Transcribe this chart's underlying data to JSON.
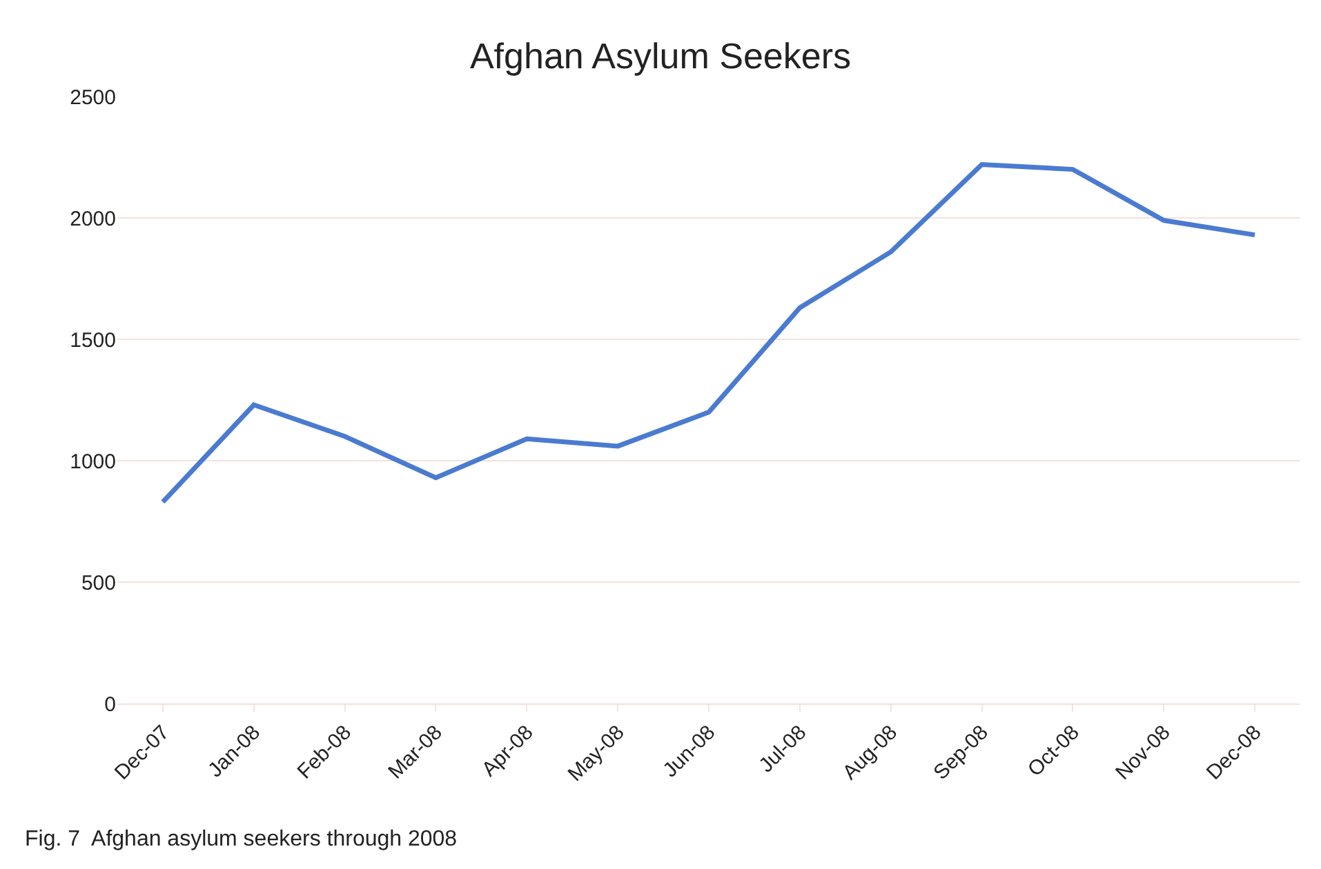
{
  "chart_data": {
    "type": "line",
    "title": "Afghan Asylum Seekers",
    "categories": [
      "Dec-07",
      "Jan-08",
      "Feb-08",
      "Mar-08",
      "Apr-08",
      "May-08",
      "Jun-08",
      "Jul-08",
      "Aug-08",
      "Sep-08",
      "Oct-08",
      "Nov-08",
      "Dec-08"
    ],
    "series": [
      {
        "color": "#4a7bd0",
        "values": [
          830,
          1230,
          1100,
          930,
          1090,
          1060,
          1200,
          1630,
          1860,
          2220,
          2200,
          1990,
          1930
        ]
      }
    ],
    "ylim": [
      0,
      2500
    ],
    "yticks": [
      0,
      500,
      1000,
      1500,
      2000,
      2500
    ],
    "grid": "y",
    "legend": false,
    "marker": "none",
    "line_style": "solid",
    "annotations": [
      "Fig. 7  Afghan asylum seekers through 2008"
    ]
  }
}
